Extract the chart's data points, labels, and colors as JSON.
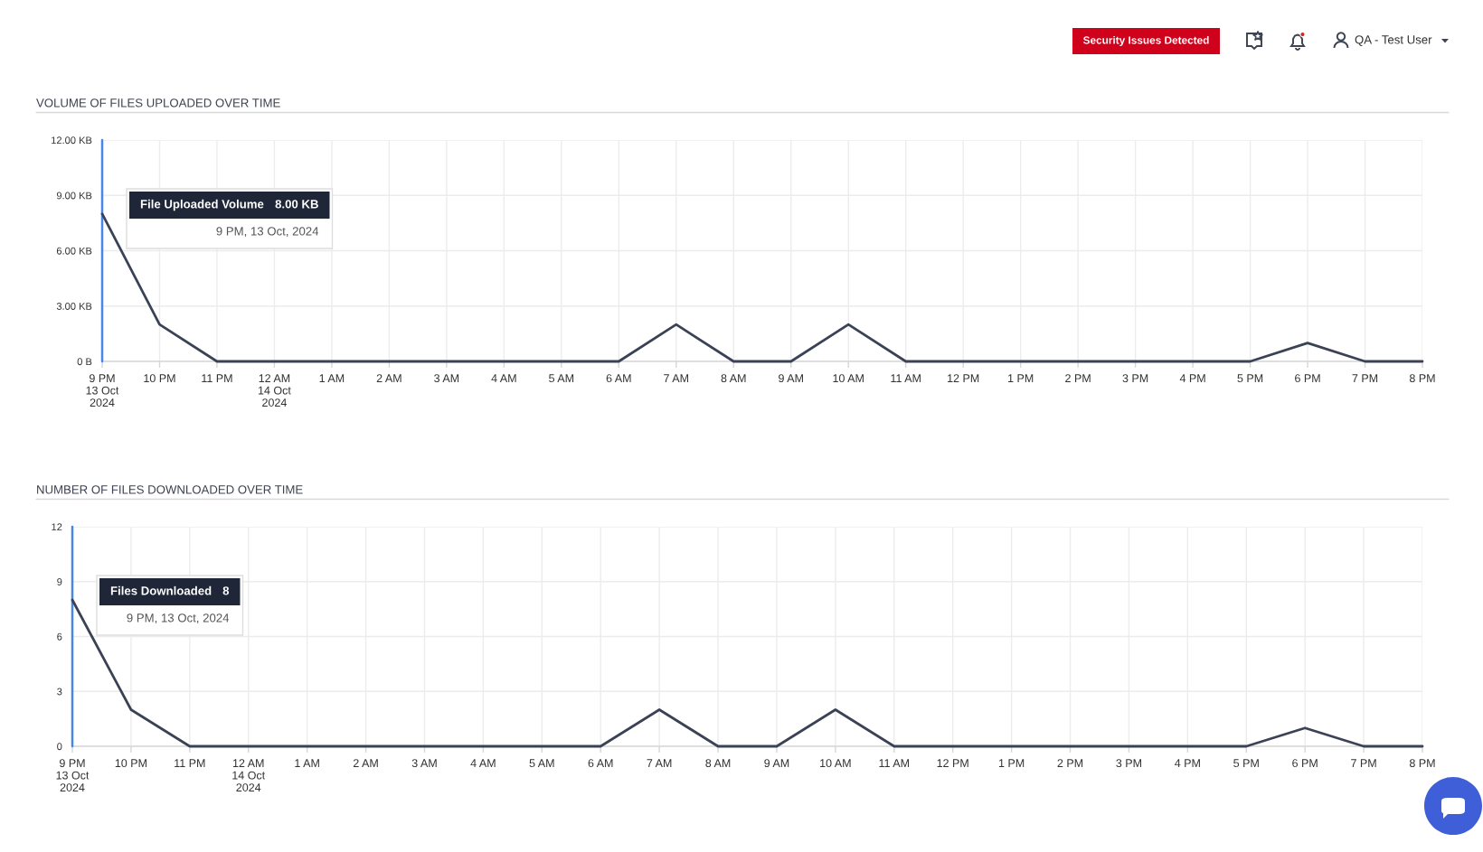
{
  "chart_data": [
    {
      "type": "other",
      "annotations": [
        "Security Issues Detected",
        "QA - Test User"
      ]
    },
    {
      "type": "line",
      "title": "VOLUME OF FILES UPLOADED OVER TIME",
      "x": [
        "2024-10-13T21:00",
        "2024-10-13T22:00",
        "2024-10-13T23:00",
        "2024-10-14T00:00",
        "2024-10-14T01:00",
        "2024-10-14T02:00",
        "2024-10-14T03:00",
        "2024-10-14T04:00",
        "2024-10-14T05:00",
        "2024-10-14T06:00",
        "2024-10-14T07:00",
        "2024-10-14T08:00",
        "2024-10-14T09:00",
        "2024-10-14T10:00",
        "2024-10-14T11:00",
        "2024-10-14T12:00",
        "2024-10-14T13:00",
        "2024-10-14T14:00",
        "2024-10-14T15:00",
        "2024-10-14T16:00",
        "2024-10-14T17:00",
        "2024-10-14T18:00",
        "2024-10-14T19:00",
        "2024-10-14T20:00"
      ],
      "series": [
        {
          "color": "#3b4256",
          "values": [
            8,
            2,
            0,
            0,
            0,
            0,
            0,
            0,
            0,
            0,
            2,
            0,
            0,
            2,
            0,
            0,
            0,
            0,
            0,
            0,
            0,
            1,
            0,
            0
          ]
        }
      ],
      "xlim": [
        "2024-10-13T21:00",
        "2024-10-14T20:00"
      ],
      "xticks": [
        {
          "value": "2024-10-13T21:00",
          "label": "9 PM\n13 Oct\n2024"
        },
        {
          "value": "2024-10-13T22:00",
          "label": "10 PM"
        },
        {
          "value": "2024-10-13T23:00",
          "label": "11 PM"
        },
        {
          "value": "2024-10-14T00:00",
          "label": "12 AM\n14 Oct\n2024"
        },
        {
          "value": "2024-10-14T01:00",
          "label": "1 AM"
        },
        {
          "value": "2024-10-14T02:00",
          "label": "2 AM"
        },
        {
          "value": "2024-10-14T03:00",
          "label": "3 AM"
        },
        {
          "value": "2024-10-14T04:00",
          "label": "4 AM"
        },
        {
          "value": "2024-10-14T05:00",
          "label": "5 AM"
        },
        {
          "value": "2024-10-14T06:00",
          "label": "6 AM"
        },
        {
          "value": "2024-10-14T07:00",
          "label": "7 AM"
        },
        {
          "value": "2024-10-14T08:00",
          "label": "8 AM"
        },
        {
          "value": "2024-10-14T09:00",
          "label": "9 AM"
        },
        {
          "value": "2024-10-14T10:00",
          "label": "10 AM"
        },
        {
          "value": "2024-10-14T11:00",
          "label": "11 AM"
        },
        {
          "value": "2024-10-14T12:00",
          "label": "12 PM"
        },
        {
          "value": "2024-10-14T13:00",
          "label": "1 PM"
        },
        {
          "value": "2024-10-14T14:00",
          "label": "2 PM"
        },
        {
          "value": "2024-10-14T15:00",
          "label": "3 PM"
        },
        {
          "value": "2024-10-14T16:00",
          "label": "4 PM"
        },
        {
          "value": "2024-10-14T17:00",
          "label": "5 PM"
        },
        {
          "value": "2024-10-14T18:00",
          "label": "6 PM"
        },
        {
          "value": "2024-10-14T19:00",
          "label": "7 PM"
        },
        {
          "value": "2024-10-14T20:00",
          "label": "8 PM"
        }
      ],
      "ylim": [
        0,
        12
      ],
      "yticks": [
        {
          "value": 0,
          "label": "0 B"
        },
        {
          "value": 3,
          "label": "3.00 KB"
        },
        {
          "value": 6,
          "label": "6.00 KB"
        },
        {
          "value": 9,
          "label": "9.00 KB"
        },
        {
          "value": 12,
          "label": "12.00 KB"
        }
      ],
      "grid": true,
      "ref_lines": [
        {
          "axis": "x",
          "value": "2024-10-13T21:00",
          "color": "#4a86e8"
        }
      ],
      "annotations": [
        "File Uploaded Volume",
        "8.00 KB",
        "9 PM, 13 Oct, 2024"
      ]
    },
    {
      "type": "line",
      "title": "NUMBER OF FILES DOWNLOADED OVER TIME",
      "x": [
        "2024-10-13T21:00",
        "2024-10-13T22:00",
        "2024-10-13T23:00",
        "2024-10-14T00:00",
        "2024-10-14T01:00",
        "2024-10-14T02:00",
        "2024-10-14T03:00",
        "2024-10-14T04:00",
        "2024-10-14T05:00",
        "2024-10-14T06:00",
        "2024-10-14T07:00",
        "2024-10-14T08:00",
        "2024-10-14T09:00",
        "2024-10-14T10:00",
        "2024-10-14T11:00",
        "2024-10-14T12:00",
        "2024-10-14T13:00",
        "2024-10-14T14:00",
        "2024-10-14T15:00",
        "2024-10-14T16:00",
        "2024-10-14T17:00",
        "2024-10-14T18:00",
        "2024-10-14T19:00",
        "2024-10-14T20:00"
      ],
      "series": [
        {
          "color": "#3b4256",
          "values": [
            8,
            2,
            0,
            0,
            0,
            0,
            0,
            0,
            0,
            0,
            2,
            0,
            0,
            2,
            0,
            0,
            0,
            0,
            0,
            0,
            0,
            1,
            0,
            0
          ]
        }
      ],
      "xlim": [
        "2024-10-13T21:00",
        "2024-10-14T20:00"
      ],
      "xticks": [
        {
          "value": "2024-10-13T21:00",
          "label": "9 PM\n13 Oct\n2024"
        },
        {
          "value": "2024-10-13T22:00",
          "label": "10 PM"
        },
        {
          "value": "2024-10-13T23:00",
          "label": "11 PM"
        },
        {
          "value": "2024-10-14T00:00",
          "label": "12 AM\n14 Oct\n2024"
        },
        {
          "value": "2024-10-14T01:00",
          "label": "1 AM"
        },
        {
          "value": "2024-10-14T02:00",
          "label": "2 AM"
        },
        {
          "value": "2024-10-14T03:00",
          "label": "3 AM"
        },
        {
          "value": "2024-10-14T04:00",
          "label": "4 AM"
        },
        {
          "value": "2024-10-14T05:00",
          "label": "5 AM"
        },
        {
          "value": "2024-10-14T06:00",
          "label": "6 AM"
        },
        {
          "value": "2024-10-14T07:00",
          "label": "7 AM"
        },
        {
          "value": "2024-10-14T08:00",
          "label": "8 AM"
        },
        {
          "value": "2024-10-14T09:00",
          "label": "9 AM"
        },
        {
          "value": "2024-10-14T10:00",
          "label": "10 AM"
        },
        {
          "value": "2024-10-14T11:00",
          "label": "11 AM"
        },
        {
          "value": "2024-10-14T12:00",
          "label": "12 PM"
        },
        {
          "value": "2024-10-14T13:00",
          "label": "1 PM"
        },
        {
          "value": "2024-10-14T14:00",
          "label": "2 PM"
        },
        {
          "value": "2024-10-14T15:00",
          "label": "3 PM"
        },
        {
          "value": "2024-10-14T16:00",
          "label": "4 PM"
        },
        {
          "value": "2024-10-14T17:00",
          "label": "5 PM"
        },
        {
          "value": "2024-10-14T18:00",
          "label": "6 PM"
        },
        {
          "value": "2024-10-14T19:00",
          "label": "7 PM"
        },
        {
          "value": "2024-10-14T20:00",
          "label": "8 PM"
        }
      ],
      "ylim": [
        0,
        12
      ],
      "yticks": [
        0,
        3,
        6,
        9,
        12
      ],
      "grid": true,
      "ref_lines": [
        {
          "axis": "x",
          "value": "2024-10-13T21:00",
          "color": "#4a86e8"
        }
      ],
      "annotations": [
        "Files Downloaded",
        "8",
        "9 PM, 13 Oct, 2024"
      ]
    }
  ]
}
